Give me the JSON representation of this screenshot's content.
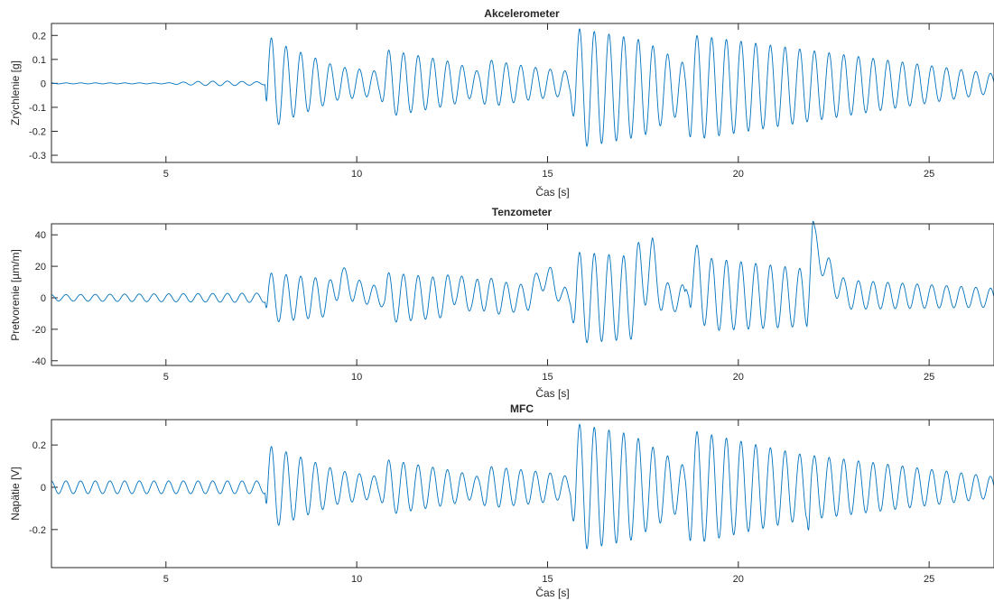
{
  "colors": {
    "line": "#0072BD",
    "axis": "#262626",
    "tick": "#262626",
    "background": "#ffffff"
  },
  "chart_data": [
    {
      "type": "line",
      "title": "Akcelerometer",
      "xlabel": "Čas [s]",
      "ylabel": "Zrýchlenie [g]",
      "xlim": [
        2,
        26.7
      ],
      "ylim": [
        -0.33,
        0.25
      ],
      "xticks": [
        5,
        10,
        15,
        20,
        25
      ],
      "yticks": [
        -0.3,
        -0.2,
        -0.1,
        0,
        0.1,
        0.2
      ],
      "xtick_labels": [
        "5",
        "10",
        "15",
        "20",
        "25"
      ],
      "ytick_labels": [
        "-0.3",
        "-0.2",
        "-0.1",
        "0",
        "0.1",
        "0.2"
      ],
      "grid": false,
      "signal_freq_hz": 2.6,
      "series": [
        {
          "envelope": [
            [
              2.0,
              0.002
            ],
            [
              5.0,
              0.002
            ],
            [
              5.8,
              0.008
            ],
            [
              6.5,
              0.01
            ],
            [
              7.6,
              0.006
            ],
            [
              7.65,
              0.2
            ],
            [
              8.2,
              0.15
            ],
            [
              9.5,
              0.07
            ],
            [
              10.6,
              0.05
            ],
            [
              10.8,
              0.14
            ],
            [
              12.5,
              0.09
            ],
            [
              13.2,
              0.05
            ],
            [
              13.4,
              0.1
            ],
            [
              14.5,
              0.07
            ],
            [
              15.6,
              0.05
            ],
            [
              15.75,
              0.25
            ],
            [
              17.5,
              0.2
            ],
            [
              18.6,
              0.1
            ],
            [
              18.75,
              0.22
            ],
            [
              20.5,
              0.18
            ],
            [
              21.8,
              0.15
            ],
            [
              26.7,
              0.04
            ]
          ],
          "dc_offset": [
            [
              2.0,
              0.0
            ],
            [
              15.7,
              0.0
            ],
            [
              15.8,
              -0.02
            ],
            [
              17.5,
              -0.02
            ],
            [
              26.7,
              0.0
            ]
          ]
        }
      ]
    },
    {
      "type": "line",
      "title": "Tenzometer",
      "xlabel": "Čas [s]",
      "ylabel": "Pretvorenie [µm/m]",
      "xlim": [
        2,
        26.7
      ],
      "ylim": [
        -43,
        47
      ],
      "xticks": [
        5,
        10,
        15,
        20,
        25
      ],
      "yticks": [
        -40,
        -20,
        0,
        20,
        40
      ],
      "xtick_labels": [
        "5",
        "10",
        "15",
        "20",
        "25"
      ],
      "ytick_labels": [
        "-40",
        "-20",
        "0",
        "20",
        "40"
      ],
      "grid": false,
      "signal_freq_hz": 2.6,
      "series": [
        {
          "envelope": [
            [
              2.0,
              2
            ],
            [
              7.6,
              3
            ],
            [
              7.65,
              16
            ],
            [
              9.2,
              12
            ],
            [
              9.7,
              8
            ],
            [
              10.7,
              6
            ],
            [
              10.8,
              16
            ],
            [
              12.5,
              12
            ],
            [
              13.0,
              8
            ],
            [
              13.2,
              12
            ],
            [
              14.5,
              8
            ],
            [
              15.4,
              7
            ],
            [
              15.6,
              6
            ],
            [
              15.75,
              29
            ],
            [
              17.4,
              26
            ],
            [
              18.0,
              10
            ],
            [
              18.6,
              8
            ],
            [
              18.75,
              24
            ],
            [
              21.9,
              18
            ],
            [
              22.0,
              10
            ],
            [
              26.7,
              6
            ]
          ],
          "dc_offset": [
            [
              2.0,
              0
            ],
            [
              7.6,
              0
            ],
            [
              7.7,
              0
            ],
            [
              9.3,
              0
            ],
            [
              9.6,
              13
            ],
            [
              9.9,
              5
            ],
            [
              10.7,
              0
            ],
            [
              10.8,
              0
            ],
            [
              12.3,
              0
            ],
            [
              12.6,
              8
            ],
            [
              12.9,
              0
            ],
            [
              13.1,
              0
            ],
            [
              13.4,
              4
            ],
            [
              13.6,
              0
            ],
            [
              14.5,
              0
            ],
            [
              14.8,
              12
            ],
            [
              15.1,
              12
            ],
            [
              15.4,
              0
            ],
            [
              15.7,
              0
            ],
            [
              17.2,
              0
            ],
            [
              17.5,
              15
            ],
            [
              17.75,
              22
            ],
            [
              18.0,
              0
            ],
            [
              18.6,
              0
            ],
            [
              18.7,
              18
            ],
            [
              18.9,
              10
            ],
            [
              19.3,
              2
            ],
            [
              21.8,
              0
            ],
            [
              21.95,
              38
            ],
            [
              22.3,
              18
            ],
            [
              22.8,
              2
            ],
            [
              26.7,
              0
            ]
          ]
        }
      ]
    },
    {
      "type": "line",
      "title": "MFC",
      "xlabel": "Čas [s]",
      "ylabel": "Napätie [V]",
      "xlim": [
        2,
        26.7
      ],
      "ylim": [
        -0.38,
        0.32
      ],
      "xticks": [
        5,
        10,
        15,
        20,
        25
      ],
      "yticks": [
        -0.2,
        0,
        0.2
      ],
      "xtick_labels": [
        "5",
        "10",
        "15",
        "20",
        "25"
      ],
      "ytick_labels": [
        "-0.2",
        "0",
        "0.2"
      ],
      "grid": false,
      "signal_freq_hz": 2.6,
      "series": [
        {
          "envelope": [
            [
              2.0,
              0.03
            ],
            [
              7.6,
              0.03
            ],
            [
              7.65,
              0.2
            ],
            [
              9.5,
              0.08
            ],
            [
              10.6,
              0.05
            ],
            [
              10.8,
              0.13
            ],
            [
              12.5,
              0.08
            ],
            [
              13.2,
              0.05
            ],
            [
              13.4,
              0.1
            ],
            [
              15.0,
              0.07
            ],
            [
              15.6,
              0.05
            ],
            [
              15.75,
              0.3
            ],
            [
              17.2,
              0.25
            ],
            [
              18.6,
              0.1
            ],
            [
              18.75,
              0.27
            ],
            [
              20.5,
              0.2
            ],
            [
              21.8,
              0.15
            ],
            [
              21.85,
              0.27
            ],
            [
              21.95,
              0.15
            ],
            [
              26.7,
              0.05
            ]
          ],
          "dc_offset": [
            [
              2.0,
              0.0
            ],
            [
              26.7,
              0.0
            ]
          ]
        }
      ]
    }
  ]
}
